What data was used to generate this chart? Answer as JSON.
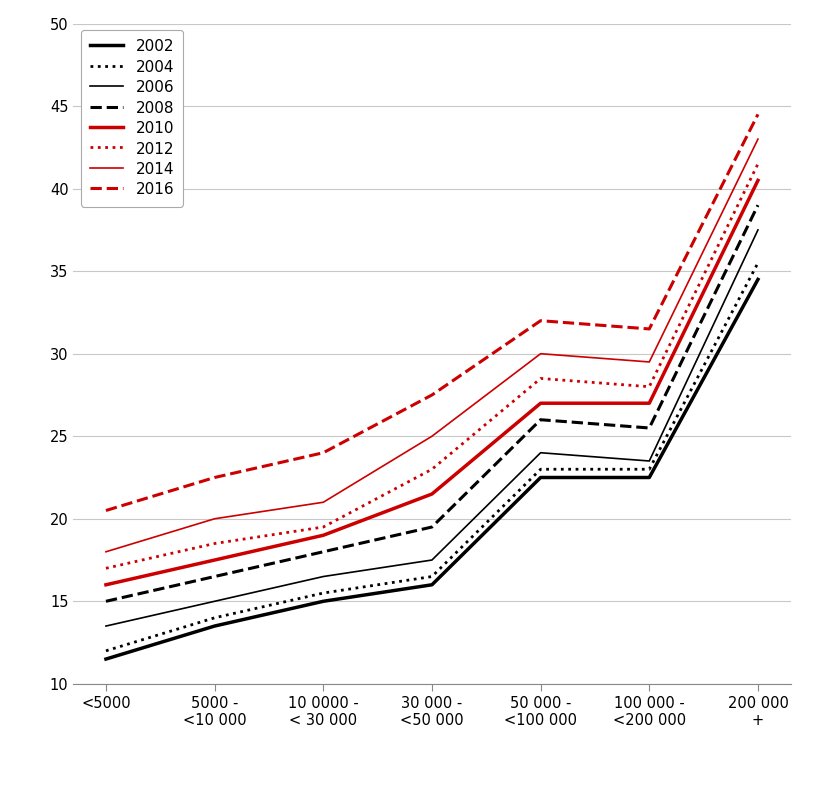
{
  "categories": [
    "<5000",
    "5000 -\n<10 000",
    "10 0000 -\n< 30 000",
    "30 000 -\n<50 000",
    "50 000 -\n<100 000",
    "100 000 -\n<200 000",
    "200 000\n+"
  ],
  "series": {
    "2002": {
      "values": [
        11.5,
        13.5,
        15.0,
        16.0,
        22.5,
        22.5,
        34.5
      ],
      "color": "#000000",
      "linestyle": "solid",
      "linewidth": 2.5,
      "dashes": null
    },
    "2004": {
      "values": [
        12.0,
        14.0,
        15.5,
        16.5,
        23.0,
        23.0,
        35.5
      ],
      "color": "#000000",
      "linestyle": "dotted",
      "linewidth": 2.0,
      "dashes": null
    },
    "2006": {
      "values": [
        13.5,
        15.0,
        16.5,
        17.5,
        24.0,
        23.5,
        37.5
      ],
      "color": "#000000",
      "linestyle": "solid",
      "linewidth": 1.2,
      "dashes": null
    },
    "2008": {
      "values": [
        15.0,
        16.5,
        18.0,
        19.5,
        26.0,
        25.5,
        39.0
      ],
      "color": "#000000",
      "linestyle": "dashed",
      "linewidth": 2.2,
      "dashes": null
    },
    "2010": {
      "values": [
        16.0,
        17.5,
        19.0,
        21.5,
        27.0,
        27.0,
        40.5
      ],
      "color": "#cc0000",
      "linestyle": "solid",
      "linewidth": 2.5,
      "dashes": null
    },
    "2012": {
      "values": [
        17.0,
        18.5,
        19.5,
        23.0,
        28.5,
        28.0,
        41.5
      ],
      "color": "#cc0000",
      "linestyle": "dotted",
      "linewidth": 2.0,
      "dashes": null
    },
    "2014": {
      "values": [
        18.0,
        20.0,
        21.0,
        25.0,
        30.0,
        29.5,
        43.0
      ],
      "color": "#cc0000",
      "linestyle": "solid",
      "linewidth": 1.2,
      "dashes": null
    },
    "2016": {
      "values": [
        20.5,
        22.5,
        24.0,
        27.5,
        32.0,
        31.5,
        44.5
      ],
      "color": "#cc0000",
      "linestyle": "dashed",
      "linewidth": 2.2,
      "dashes": null
    }
  },
  "ylim": [
    10,
    50
  ],
  "yticks": [
    10,
    15,
    20,
    25,
    30,
    35,
    40,
    45,
    50
  ],
  "background_color": "#ffffff",
  "grid_color": "#c8c8c8",
  "figsize": [
    8.15,
    7.86
  ],
  "dpi": 100
}
